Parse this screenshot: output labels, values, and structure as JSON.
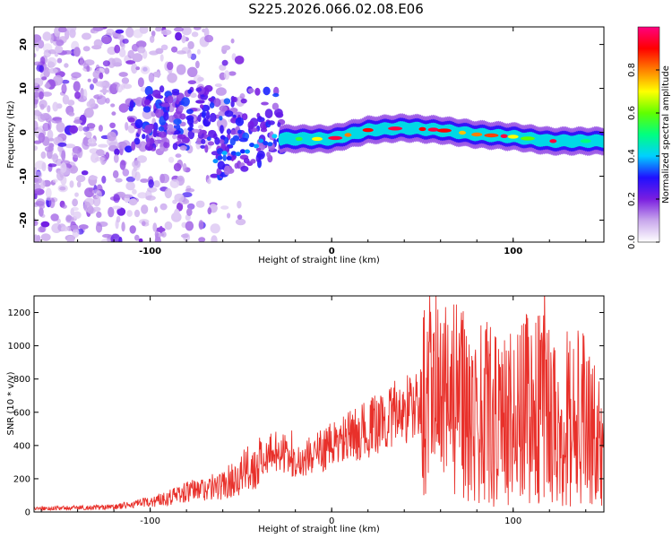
{
  "title": "S225.2026.066.02.08.E06",
  "colors": {
    "snr_line": "#e8302a",
    "axis": "#000000",
    "background": "#ffffff"
  },
  "chart_data": [
    {
      "type": "heatmap",
      "xlabel": "Height of straight line (km)",
      "ylabel": "Frequency (Hz)",
      "xlim": [
        -164,
        150
      ],
      "ylim": [
        -25,
        24
      ],
      "xticks": [
        -100,
        0,
        100
      ],
      "xtick_labels": [
        "-100",
        "0",
        "100"
      ],
      "yticks": [
        -20,
        -10,
        0,
        10,
        20
      ],
      "ytick_labels": [
        "-20",
        "-10",
        "0",
        "10",
        "20"
      ],
      "colorbar": {
        "label": "Normalized spectral amplitude",
        "range": [
          0,
          1
        ],
        "ticks": [
          0.0,
          0.2,
          0.4,
          0.6,
          0.8
        ],
        "tick_labels": [
          "0.0",
          "0.2",
          "0.4",
          "0.6",
          "0.8"
        ],
        "colormap": [
          "#ffffff",
          "#c9a8ec",
          "#7a1ee0",
          "#2010ff",
          "#00d0ff",
          "#00ff80",
          "#60ff00",
          "#ffff00",
          "#ff8000",
          "#ff0000",
          "#ff0080"
        ]
      },
      "ridge": {
        "description_points_x": [
          -25,
          0,
          20,
          40,
          60,
          80,
          100,
          120,
          150
        ],
        "frequency": [
          -1.5,
          -1.5,
          0.5,
          1,
          0.5,
          -0.5,
          -1,
          -2,
          -2
        ],
        "peak_amplitude": 0.95
      }
    },
    {
      "type": "line",
      "xlabel": "Height of straight line (km)",
      "ylabel": "SNR (10 * v/v)",
      "xlim": [
        -164,
        150
      ],
      "ylim": [
        0,
        1300
      ],
      "xticks": [
        -100,
        0,
        100
      ],
      "xtick_labels": [
        "-100",
        "0",
        "100"
      ],
      "yticks": [
        0,
        200,
        400,
        600,
        800,
        1000,
        1200
      ],
      "ytick_labels": [
        "0",
        "200",
        "400",
        "600",
        "800",
        "1000",
        "1200"
      ],
      "envelope_x": [
        -164,
        -120,
        -100,
        -80,
        -60,
        -40,
        -30,
        -20,
        0,
        20,
        40,
        50,
        60,
        80,
        100,
        110,
        120,
        140,
        150
      ],
      "envelope_y": [
        20,
        30,
        60,
        120,
        160,
        300,
        380,
        300,
        400,
        500,
        620,
        650,
        700,
        600,
        550,
        650,
        600,
        550,
        350
      ]
    }
  ]
}
